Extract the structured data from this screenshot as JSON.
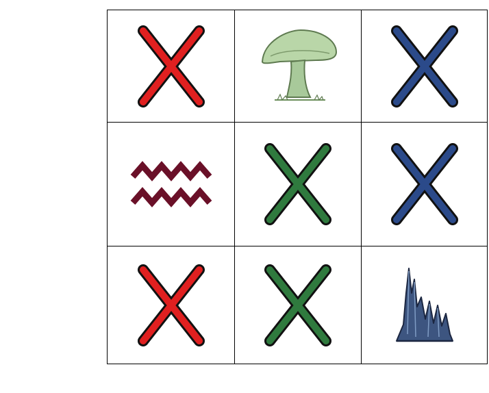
{
  "board": {
    "cells": [
      {
        "row": 1,
        "col": 1,
        "symbol": "x-icon",
        "color": "#e02020"
      },
      {
        "row": 1,
        "col": 2,
        "symbol": "mushroom-icon",
        "color": "#9ec48e"
      },
      {
        "row": 1,
        "col": 3,
        "symbol": "x-icon",
        "color": "#2b4a8a"
      },
      {
        "row": 2,
        "col": 1,
        "symbol": "zigzag-waves-icon",
        "color": "#6a1028"
      },
      {
        "row": 2,
        "col": 2,
        "symbol": "x-icon",
        "color": "#2f7a3e"
      },
      {
        "row": 2,
        "col": 3,
        "symbol": "x-icon",
        "color": "#2b4a8a"
      },
      {
        "row": 3,
        "col": 1,
        "symbol": "x-icon",
        "color": "#e02020"
      },
      {
        "row": 3,
        "col": 2,
        "symbol": "x-icon",
        "color": "#2f7a3e"
      },
      {
        "row": 3,
        "col": 3,
        "symbol": "crystal-spires-icon",
        "color": "#3d5580"
      }
    ]
  }
}
